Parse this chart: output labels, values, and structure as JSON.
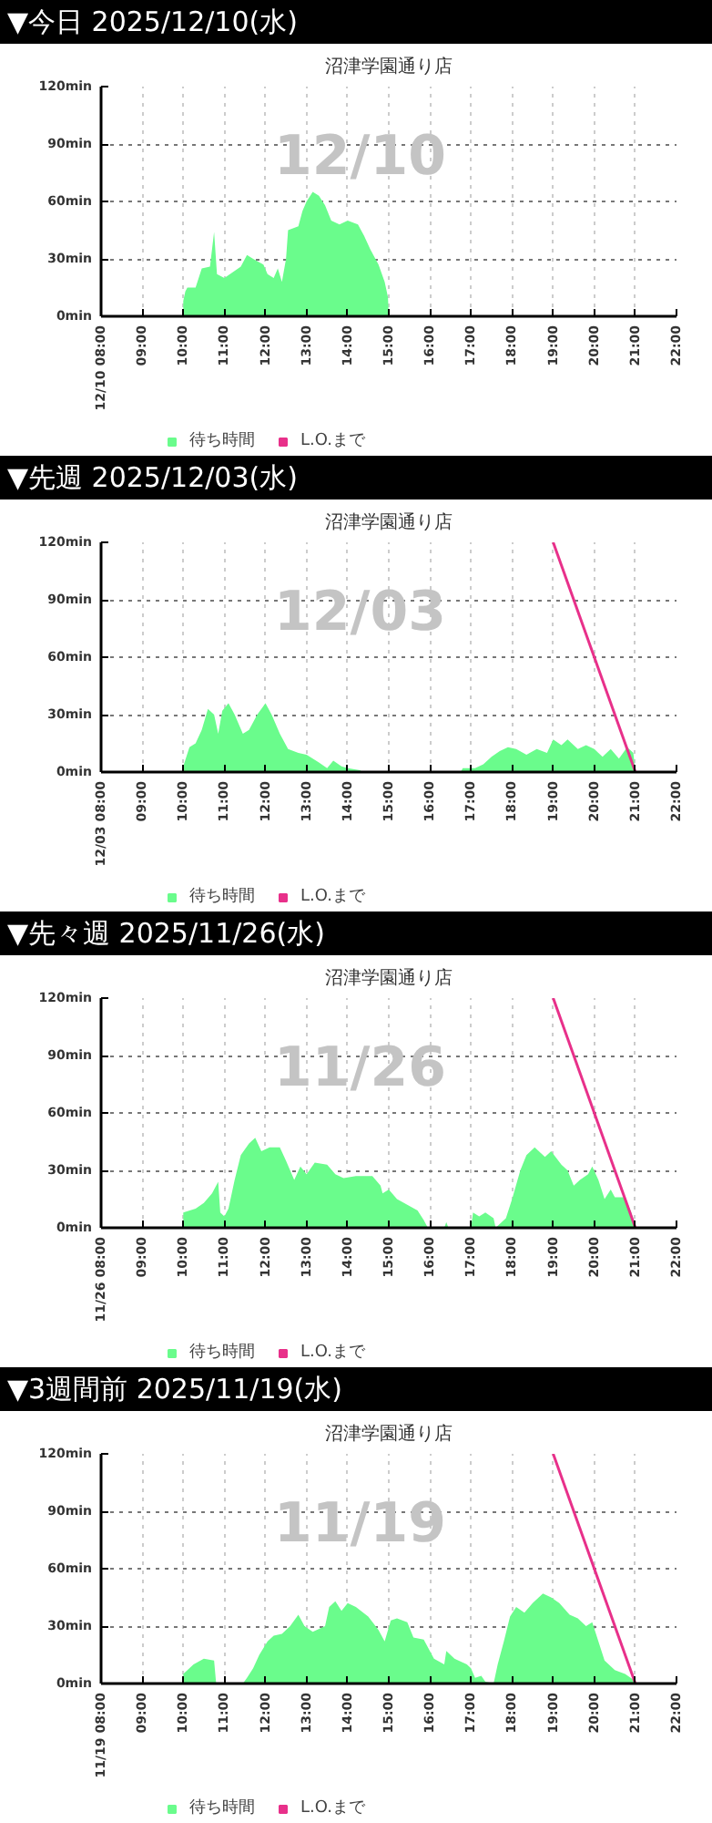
{
  "chart_data": [
    {
      "type": "area",
      "title": "▼今日 2025/12/10(水)",
      "subtitle": "沼津学園通り店",
      "annotations": [
        "12/10"
      ],
      "xlim": [
        8,
        22
      ],
      "ylim": [
        0,
        120
      ],
      "grid": true,
      "legend": "bottom",
      "xticks": [
        {
          "value": 8,
          "label": "12/10 08:00"
        },
        {
          "value": 9,
          "label": "09:00"
        },
        {
          "value": 10,
          "label": "10:00"
        },
        {
          "value": 11,
          "label": "11:00"
        },
        {
          "value": 12,
          "label": "12:00"
        },
        {
          "value": 13,
          "label": "13:00"
        },
        {
          "value": 14,
          "label": "14:00"
        },
        {
          "value": 15,
          "label": "15:00"
        },
        {
          "value": 16,
          "label": "16:00"
        },
        {
          "value": 17,
          "label": "17:00"
        },
        {
          "value": 18,
          "label": "18:00"
        },
        {
          "value": 19,
          "label": "19:00"
        },
        {
          "value": 20,
          "label": "20:00"
        },
        {
          "value": 21,
          "label": "21:00"
        },
        {
          "value": 22,
          "label": "22:00"
        }
      ],
      "yticks": [
        {
          "value": 0,
          "label": "0min"
        },
        {
          "value": 30,
          "label": "30min"
        },
        {
          "value": 60,
          "label": "60min"
        },
        {
          "value": 90,
          "label": "90min"
        },
        {
          "value": 120,
          "label": "120min"
        }
      ],
      "series": [
        {
          "name": "待ち時間",
          "color": "#6afc8c",
          "x": [
            10.0,
            10.05,
            10.1,
            10.3,
            10.45,
            10.65,
            10.7,
            10.75,
            10.82,
            11.0,
            11.2,
            11.4,
            11.55,
            11.7,
            11.95,
            12.05,
            12.2,
            12.3,
            12.4,
            12.5,
            12.55,
            12.8,
            12.9,
            13.0,
            13.15,
            13.3,
            13.45,
            13.6,
            13.8,
            14.0,
            14.25,
            14.4,
            14.55,
            14.75,
            14.9,
            14.98,
            15.0
          ],
          "values": [
            8,
            13,
            15,
            15,
            25,
            26,
            35,
            44,
            22,
            20,
            23,
            26,
            32,
            30,
            27,
            22,
            20,
            25,
            18,
            30,
            45,
            47,
            55,
            60,
            65,
            63,
            58,
            50,
            48,
            50,
            48,
            42,
            35,
            27,
            18,
            10,
            0
          ]
        },
        {
          "name": "L.O.まで",
          "type": "line",
          "color": "#e8308a"
        }
      ]
    },
    {
      "type": "area",
      "title": "▼先週 2025/12/03(水)",
      "subtitle": "沼津学園通り店",
      "annotations": [
        "12/03"
      ],
      "xlim": [
        8,
        22
      ],
      "ylim": [
        0,
        120
      ],
      "grid": true,
      "legend": "bottom",
      "xticks": [
        {
          "value": 8,
          "label": "12/03 08:00"
        },
        {
          "value": 9,
          "label": "09:00"
        },
        {
          "value": 10,
          "label": "10:00"
        },
        {
          "value": 11,
          "label": "11:00"
        },
        {
          "value": 12,
          "label": "12:00"
        },
        {
          "value": 13,
          "label": "13:00"
        },
        {
          "value": 14,
          "label": "14:00"
        },
        {
          "value": 15,
          "label": "15:00"
        },
        {
          "value": 16,
          "label": "16:00"
        },
        {
          "value": 17,
          "label": "17:00"
        },
        {
          "value": 18,
          "label": "18:00"
        },
        {
          "value": 19,
          "label": "19:00"
        },
        {
          "value": 20,
          "label": "20:00"
        },
        {
          "value": 21,
          "label": "21:00"
        },
        {
          "value": 22,
          "label": "22:00"
        }
      ],
      "yticks": [
        {
          "value": 0,
          "label": "0min"
        },
        {
          "value": 30,
          "label": "30min"
        },
        {
          "value": 60,
          "label": "60min"
        },
        {
          "value": 90,
          "label": "90min"
        },
        {
          "value": 120,
          "label": "120min"
        }
      ],
      "series": [
        {
          "name": "待ち時間",
          "color": "#6afc8c",
          "x": [
            10.0,
            10.15,
            10.3,
            10.45,
            10.6,
            10.75,
            10.85,
            10.95,
            11.1,
            11.25,
            11.45,
            11.6,
            11.8,
            12.0,
            12.15,
            12.35,
            12.55,
            12.8,
            13.0,
            13.3,
            13.5,
            13.65,
            13.85,
            14.0,
            14.3,
            14.35,
            16.75,
            16.8,
            17.1,
            17.3,
            17.5,
            17.7,
            17.9,
            18.1,
            18.35,
            18.6,
            18.85,
            19.0,
            19.2,
            19.35,
            19.6,
            19.8,
            20.0,
            20.2,
            20.4,
            20.6,
            20.8,
            20.95,
            21.0
          ],
          "values": [
            3,
            13,
            15,
            22,
            33,
            30,
            20,
            32,
            36,
            30,
            20,
            22,
            30,
            36,
            30,
            20,
            12,
            10,
            9,
            5,
            2,
            6,
            3,
            2,
            1,
            0,
            0,
            2,
            2,
            4,
            8,
            11,
            13,
            12,
            9,
            12,
            10,
            17,
            14,
            17,
            12,
            14,
            12,
            8,
            12,
            7,
            13,
            10,
            0
          ]
        },
        {
          "name": "L.O.まで",
          "type": "line",
          "color": "#e8308a",
          "x": [
            19,
            21
          ],
          "values": [
            120,
            0
          ]
        }
      ]
    },
    {
      "type": "area",
      "title": "▼先々週 2025/11/26(水)",
      "subtitle": "沼津学園通り店",
      "annotations": [
        "11/26"
      ],
      "xlim": [
        8,
        22
      ],
      "ylim": [
        0,
        120
      ],
      "grid": true,
      "legend": "bottom",
      "xticks": [
        {
          "value": 8,
          "label": "11/26 08:00"
        },
        {
          "value": 9,
          "label": "09:00"
        },
        {
          "value": 10,
          "label": "10:00"
        },
        {
          "value": 11,
          "label": "11:00"
        },
        {
          "value": 12,
          "label": "12:00"
        },
        {
          "value": 13,
          "label": "13:00"
        },
        {
          "value": 14,
          "label": "14:00"
        },
        {
          "value": 15,
          "label": "15:00"
        },
        {
          "value": 16,
          "label": "16:00"
        },
        {
          "value": 17,
          "label": "17:00"
        },
        {
          "value": 18,
          "label": "18:00"
        },
        {
          "value": 19,
          "label": "19:00"
        },
        {
          "value": 20,
          "label": "20:00"
        },
        {
          "value": 21,
          "label": "21:00"
        },
        {
          "value": 22,
          "label": "22:00"
        }
      ],
      "yticks": [
        {
          "value": 0,
          "label": "0min"
        },
        {
          "value": 30,
          "label": "30min"
        },
        {
          "value": 60,
          "label": "60min"
        },
        {
          "value": 90,
          "label": "90min"
        },
        {
          "value": 120,
          "label": "120min"
        }
      ],
      "series": [
        {
          "name": "待ち時間",
          "color": "#6afc8c",
          "x": [
            10.0,
            10.3,
            10.5,
            10.7,
            10.85,
            10.9,
            11.0,
            11.1,
            11.25,
            11.4,
            11.6,
            11.75,
            11.9,
            12.1,
            12.35,
            12.5,
            12.7,
            12.85,
            13.0,
            13.2,
            13.5,
            13.7,
            13.9,
            14.2,
            14.6,
            14.8,
            14.85,
            15.0,
            15.2,
            15.45,
            15.7,
            15.85,
            15.95,
            16.35,
            16.4,
            16.45,
            17.0,
            17.05,
            17.2,
            17.35,
            17.55,
            17.6,
            17.85,
            18.0,
            18.2,
            18.35,
            18.55,
            18.8,
            18.95,
            19.2,
            19.35,
            19.5,
            19.65,
            19.85,
            19.95,
            20.1,
            20.25,
            20.4,
            20.5,
            20.75,
            20.9,
            21.0
          ],
          "values": [
            8,
            10,
            13,
            18,
            24,
            8,
            6,
            10,
            25,
            38,
            44,
            47,
            40,
            42,
            42,
            35,
            25,
            32,
            28,
            34,
            33,
            28,
            26,
            27,
            27,
            22,
            18,
            20,
            15,
            12,
            9,
            4,
            0,
            0,
            3,
            0,
            0,
            8,
            6,
            8,
            5,
            0,
            5,
            15,
            30,
            38,
            42,
            37,
            40,
            33,
            30,
            22,
            25,
            28,
            32,
            25,
            15,
            20,
            16,
            16,
            8,
            0
          ]
        },
        {
          "name": "L.O.まで",
          "type": "line",
          "color": "#e8308a",
          "x": [
            19,
            21
          ],
          "values": [
            120,
            0
          ]
        }
      ]
    },
    {
      "type": "area",
      "title": "▼3週間前 2025/11/19(水)",
      "subtitle": "沼津学園通り店",
      "annotations": [
        "11/19"
      ],
      "xlim": [
        8,
        22
      ],
      "ylim": [
        0,
        120
      ],
      "grid": true,
      "legend": "bottom",
      "xticks": [
        {
          "value": 8,
          "label": "11/19 08:00"
        },
        {
          "value": 9,
          "label": "09:00"
        },
        {
          "value": 10,
          "label": "10:00"
        },
        {
          "value": 11,
          "label": "11:00"
        },
        {
          "value": 12,
          "label": "12:00"
        },
        {
          "value": 13,
          "label": "13:00"
        },
        {
          "value": 14,
          "label": "14:00"
        },
        {
          "value": 15,
          "label": "15:00"
        },
        {
          "value": 16,
          "label": "16:00"
        },
        {
          "value": 17,
          "label": "17:00"
        },
        {
          "value": 18,
          "label": "18:00"
        },
        {
          "value": 19,
          "label": "19:00"
        },
        {
          "value": 20,
          "label": "20:00"
        },
        {
          "value": 21,
          "label": "21:00"
        },
        {
          "value": 22,
          "label": "22:00"
        }
      ],
      "yticks": [
        {
          "value": 0,
          "label": "0min"
        },
        {
          "value": 30,
          "label": "30min"
        },
        {
          "value": 60,
          "label": "60min"
        },
        {
          "value": 90,
          "label": "90min"
        },
        {
          "value": 120,
          "label": "120min"
        }
      ],
      "series": [
        {
          "name": "待ち時間",
          "color": "#6afc8c",
          "x": [
            10.0,
            10.25,
            10.5,
            10.75,
            10.8,
            11.45,
            11.55,
            11.7,
            11.85,
            12.05,
            12.2,
            12.4,
            12.6,
            12.8,
            12.95,
            13.15,
            13.45,
            13.55,
            13.7,
            13.85,
            14.0,
            14.2,
            14.5,
            14.75,
            14.9,
            15.05,
            15.2,
            15.45,
            15.6,
            15.85,
            16.1,
            16.35,
            16.4,
            16.6,
            16.9,
            17.0,
            17.1,
            17.25,
            17.35,
            17.55,
            17.65,
            17.8,
            17.95,
            18.1,
            18.3,
            18.5,
            18.75,
            18.95,
            19.15,
            19.4,
            19.6,
            19.8,
            19.95,
            20.1,
            20.25,
            20.5,
            20.75,
            20.95,
            21.0
          ],
          "values": [
            5,
            10,
            13,
            12,
            0,
            0,
            3,
            8,
            15,
            22,
            25,
            26,
            30,
            36,
            30,
            27,
            30,
            40,
            43,
            38,
            42,
            40,
            35,
            28,
            22,
            33,
            34,
            32,
            24,
            23,
            13,
            10,
            17,
            13,
            10,
            8,
            3,
            4,
            1,
            0,
            10,
            22,
            35,
            40,
            37,
            42,
            47,
            45,
            42,
            36,
            34,
            30,
            32,
            22,
            12,
            7,
            5,
            2,
            0
          ]
        },
        {
          "name": "L.O.まで",
          "type": "line",
          "color": "#e8308a",
          "x": [
            19,
            21
          ],
          "values": [
            120,
            0
          ]
        }
      ]
    }
  ]
}
